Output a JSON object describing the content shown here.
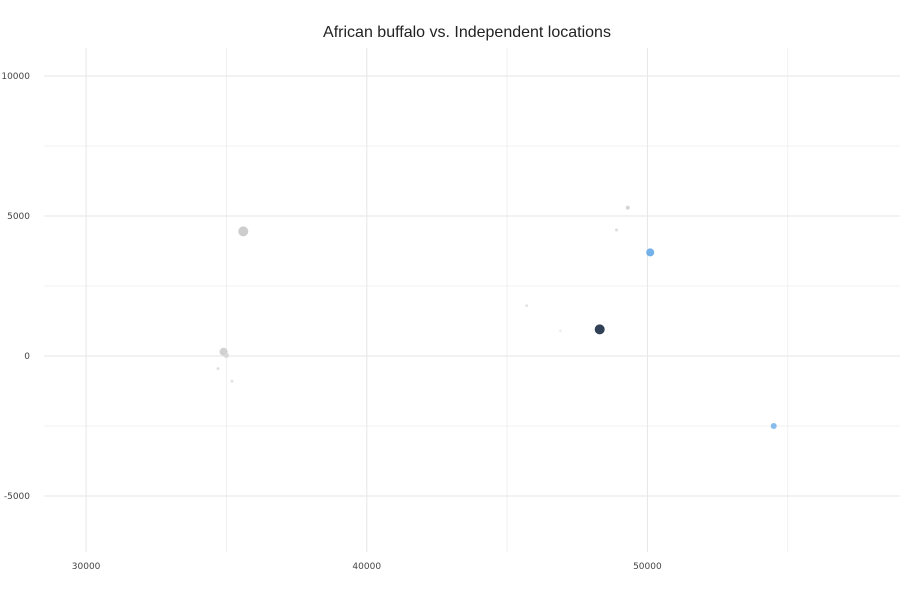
{
  "chart_data": {
    "type": "scatter",
    "title": "African buffalo vs. Independent locations",
    "xlabel": "",
    "ylabel": "",
    "xlim": [
      28500,
      59000
    ],
    "ylim": [
      -7000,
      11000
    ],
    "x_ticks": [
      30000,
      40000,
      50000
    ],
    "x_minor_ticks": [
      35000,
      45000,
      55000
    ],
    "y_ticks": [
      -5000,
      0,
      5000,
      10000
    ],
    "y_minor_ticks": [
      -2500,
      2500,
      7500
    ],
    "grid": true,
    "legend": "none",
    "points": [
      {
        "x": 35600,
        "y": 4450,
        "color": "#c8c8c8",
        "size": 5
      },
      {
        "x": 34900,
        "y": 150,
        "color": "#cccccc",
        "size": 4
      },
      {
        "x": 35000,
        "y": 20,
        "color": "#d6d6d6",
        "size": 2.5
      },
      {
        "x": 34700,
        "y": -450,
        "color": "#dddddd",
        "size": 1.5
      },
      {
        "x": 35200,
        "y": -900,
        "color": "#e0e0e0",
        "size": 1.5
      },
      {
        "x": 45700,
        "y": 1800,
        "color": "#e2e2e2",
        "size": 1.5
      },
      {
        "x": 46900,
        "y": 900,
        "color": "#e6e6e6",
        "size": 1.2
      },
      {
        "x": 48300,
        "y": 950,
        "color": "#1a2b44",
        "size": 5
      },
      {
        "x": 48900,
        "y": 4500,
        "color": "#d8d8d8",
        "size": 1.5
      },
      {
        "x": 49300,
        "y": 5300,
        "color": "#d0d0d0",
        "size": 2
      },
      {
        "x": 50100,
        "y": 3700,
        "color": "#64a8e6",
        "size": 4
      },
      {
        "x": 54500,
        "y": -2500,
        "color": "#7ab6ea",
        "size": 3
      }
    ]
  }
}
